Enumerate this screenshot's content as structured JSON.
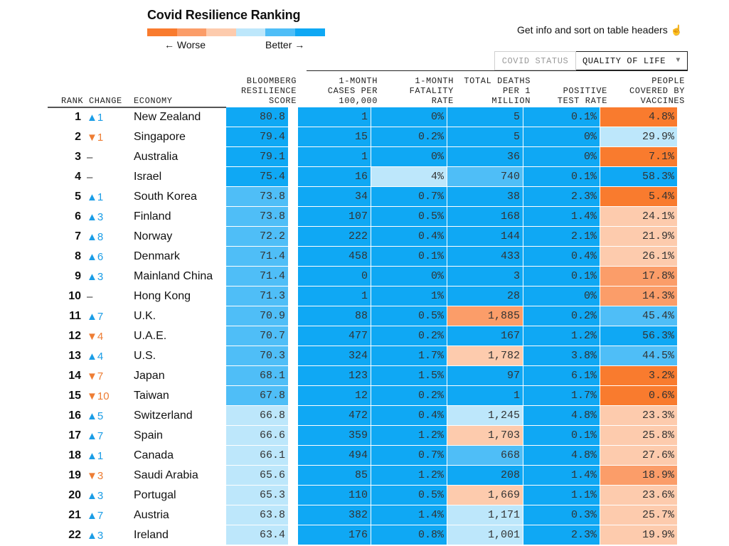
{
  "header": {
    "title": "Covid Resilience Ranking",
    "legend_worse": "← Worse",
    "legend_better": "Better →",
    "info_text": "Get info and sort on table headers ☝",
    "scale_colors": [
      "#f97b2e",
      "#fb9d69",
      "#fdcbad",
      "#bde7fb",
      "#4fbef7",
      "#0fa8f4"
    ]
  },
  "tabs": {
    "covid_status": "COVID STATUS",
    "quality_of_life": "QUALITY OF LIFE",
    "caret": "▼"
  },
  "columns": {
    "rank": "RANK",
    "change": "CHANGE",
    "economy": "ECONOMY",
    "score": "BLOOMBERG\nRESILIENCE\nSCORE",
    "cases": "1-MONTH\nCASES PER\n100,000",
    "fatality": "1-MONTH\nFATALITY\nRATE",
    "deaths": "TOTAL DEATHS\nPER 1\nMILLION",
    "positive": "POSITIVE\nTEST RATE",
    "vaccines": "PEOPLE\nCOVERED BY\nVACCINES"
  },
  "colors": {
    "a": "#0fa8f4",
    "b": "#4fbef7",
    "c": "#bde7fb",
    "d": "#fdcbad",
    "e": "#fb9d69",
    "f": "#f97b2e",
    "up": "#1b9de6",
    "down": "#ee7d34"
  },
  "rows": [
    {
      "rank": "1",
      "dir": "up",
      "change": "▲1",
      "economy": "New Zealand",
      "score": "80.8",
      "cases": "1",
      "fatality": "0%",
      "deaths": "5",
      "positive": "0.1%",
      "vaccines": "4.8%",
      "colors": [
        "a",
        "a",
        "a",
        "a",
        "a",
        "f"
      ]
    },
    {
      "rank": "2",
      "dir": "down",
      "change": "▼1",
      "economy": "Singapore",
      "score": "79.4",
      "cases": "15",
      "fatality": "0.2%",
      "deaths": "5",
      "positive": "0%",
      "vaccines": "29.9%",
      "colors": [
        "a",
        "a",
        "a",
        "a",
        "a",
        "c"
      ]
    },
    {
      "rank": "3",
      "dir": "same",
      "change": "–",
      "economy": "Australia",
      "score": "79.1",
      "cases": "1",
      "fatality": "0%",
      "deaths": "36",
      "positive": "0%",
      "vaccines": "7.1%",
      "colors": [
        "a",
        "a",
        "a",
        "a",
        "a",
        "f"
      ]
    },
    {
      "rank": "4",
      "dir": "same",
      "change": "–",
      "economy": "Israel",
      "score": "75.4",
      "cases": "16",
      "fatality": "4%",
      "deaths": "740",
      "positive": "0.1%",
      "vaccines": "58.3%",
      "colors": [
        "a",
        "a",
        "c",
        "b",
        "a",
        "a"
      ]
    },
    {
      "rank": "5",
      "dir": "up",
      "change": "▲1",
      "economy": "South Korea",
      "score": "73.8",
      "cases": "34",
      "fatality": "0.7%",
      "deaths": "38",
      "positive": "2.3%",
      "vaccines": "5.4%",
      "colors": [
        "b",
        "a",
        "a",
        "a",
        "a",
        "f"
      ]
    },
    {
      "rank": "6",
      "dir": "up",
      "change": "▲3",
      "economy": "Finland",
      "score": "73.8",
      "cases": "107",
      "fatality": "0.5%",
      "deaths": "168",
      "positive": "1.4%",
      "vaccines": "24.1%",
      "colors": [
        "b",
        "a",
        "a",
        "a",
        "a",
        "d"
      ]
    },
    {
      "rank": "7",
      "dir": "up",
      "change": "▲8",
      "economy": "Norway",
      "score": "72.2",
      "cases": "222",
      "fatality": "0.4%",
      "deaths": "144",
      "positive": "2.1%",
      "vaccines": "21.9%",
      "colors": [
        "b",
        "a",
        "a",
        "a",
        "a",
        "d"
      ]
    },
    {
      "rank": "8",
      "dir": "up",
      "change": "▲6",
      "economy": "Denmark",
      "score": "71.4",
      "cases": "458",
      "fatality": "0.1%",
      "deaths": "433",
      "positive": "0.4%",
      "vaccines": "26.1%",
      "colors": [
        "b",
        "a",
        "a",
        "a",
        "a",
        "d"
      ]
    },
    {
      "rank": "9",
      "dir": "up",
      "change": "▲3",
      "economy": "Mainland China",
      "score": "71.4",
      "cases": "0",
      "fatality": "0%",
      "deaths": "3",
      "positive": "0.1%",
      "vaccines": "17.8%",
      "colors": [
        "b",
        "a",
        "a",
        "a",
        "a",
        "e"
      ]
    },
    {
      "rank": "10",
      "dir": "same",
      "change": "–",
      "economy": "Hong Kong",
      "score": "71.3",
      "cases": "1",
      "fatality": "1%",
      "deaths": "28",
      "positive": "0%",
      "vaccines": "14.3%",
      "colors": [
        "b",
        "a",
        "a",
        "a",
        "a",
        "e"
      ]
    },
    {
      "rank": "11",
      "dir": "up",
      "change": "▲7",
      "economy": "U.K.",
      "score": "70.9",
      "cases": "88",
      "fatality": "0.5%",
      "deaths": "1,885",
      "positive": "0.2%",
      "vaccines": "45.4%",
      "colors": [
        "b",
        "a",
        "a",
        "e",
        "a",
        "b"
      ]
    },
    {
      "rank": "12",
      "dir": "down",
      "change": "▼4",
      "economy": "U.A.E.",
      "score": "70.7",
      "cases": "477",
      "fatality": "0.2%",
      "deaths": "167",
      "positive": "1.2%",
      "vaccines": "56.3%",
      "colors": [
        "b",
        "a",
        "a",
        "a",
        "a",
        "a"
      ]
    },
    {
      "rank": "13",
      "dir": "up",
      "change": "▲4",
      "economy": "U.S.",
      "score": "70.3",
      "cases": "324",
      "fatality": "1.7%",
      "deaths": "1,782",
      "positive": "3.8%",
      "vaccines": "44.5%",
      "colors": [
        "b",
        "a",
        "a",
        "d",
        "a",
        "b"
      ]
    },
    {
      "rank": "14",
      "dir": "down",
      "change": "▼7",
      "economy": "Japan",
      "score": "68.1",
      "cases": "123",
      "fatality": "1.5%",
      "deaths": "97",
      "positive": "6.1%",
      "vaccines": "3.2%",
      "colors": [
        "b",
        "a",
        "a",
        "a",
        "a",
        "f"
      ]
    },
    {
      "rank": "15",
      "dir": "down",
      "change": "▼10",
      "economy": "Taiwan",
      "score": "67.8",
      "cases": "12",
      "fatality": "0.2%",
      "deaths": "1",
      "positive": "1.7%",
      "vaccines": "0.6%",
      "colors": [
        "b",
        "a",
        "a",
        "a",
        "a",
        "f"
      ]
    },
    {
      "rank": "16",
      "dir": "up",
      "change": "▲5",
      "economy": "Switzerland",
      "score": "66.8",
      "cases": "472",
      "fatality": "0.4%",
      "deaths": "1,245",
      "positive": "4.8%",
      "vaccines": "23.3%",
      "colors": [
        "c",
        "a",
        "a",
        "c",
        "a",
        "d"
      ]
    },
    {
      "rank": "17",
      "dir": "up",
      "change": "▲7",
      "economy": "Spain",
      "score": "66.6",
      "cases": "359",
      "fatality": "1.2%",
      "deaths": "1,703",
      "positive": "0.1%",
      "vaccines": "25.8%",
      "colors": [
        "c",
        "a",
        "a",
        "d",
        "a",
        "d"
      ]
    },
    {
      "rank": "18",
      "dir": "up",
      "change": "▲1",
      "economy": "Canada",
      "score": "66.1",
      "cases": "494",
      "fatality": "0.7%",
      "deaths": "668",
      "positive": "4.8%",
      "vaccines": "27.6%",
      "colors": [
        "c",
        "a",
        "a",
        "b",
        "a",
        "d"
      ]
    },
    {
      "rank": "19",
      "dir": "down",
      "change": "▼3",
      "economy": "Saudi Arabia",
      "score": "65.6",
      "cases": "85",
      "fatality": "1.2%",
      "deaths": "208",
      "positive": "1.4%",
      "vaccines": "18.9%",
      "colors": [
        "c",
        "a",
        "a",
        "a",
        "a",
        "e"
      ]
    },
    {
      "rank": "20",
      "dir": "up",
      "change": "▲3",
      "economy": "Portugal",
      "score": "65.3",
      "cases": "110",
      "fatality": "0.5%",
      "deaths": "1,669",
      "positive": "1.1%",
      "vaccines": "23.6%",
      "colors": [
        "c",
        "a",
        "a",
        "d",
        "a",
        "d"
      ]
    },
    {
      "rank": "21",
      "dir": "up",
      "change": "▲7",
      "economy": "Austria",
      "score": "63.8",
      "cases": "382",
      "fatality": "1.4%",
      "deaths": "1,171",
      "positive": "0.3%",
      "vaccines": "25.7%",
      "colors": [
        "c",
        "a",
        "a",
        "c",
        "a",
        "d"
      ]
    },
    {
      "rank": "22",
      "dir": "up",
      "change": "▲3",
      "economy": "Ireland",
      "score": "63.4",
      "cases": "176",
      "fatality": "0.8%",
      "deaths": "1,001",
      "positive": "2.3%",
      "vaccines": "19.9%",
      "colors": [
        "c",
        "a",
        "a",
        "c",
        "a",
        "d"
      ]
    }
  ]
}
